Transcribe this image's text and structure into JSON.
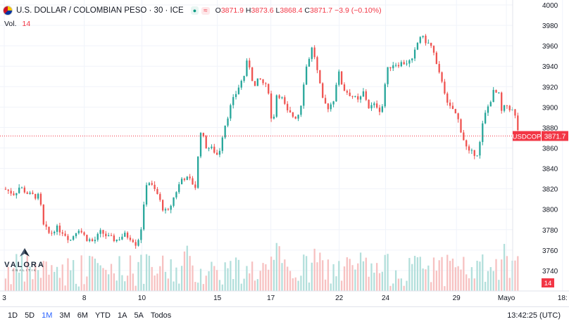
{
  "header": {
    "symbol_title": "U.S. DOLLAR / COLOMBIAN PESO · 30 · ICE",
    "open_label": "O",
    "open_value": "3871.9",
    "high_label": "H",
    "high_value": "3873.6",
    "low_label": "L",
    "low_value": "3868.4",
    "close_label": "C",
    "close_value": "3871.7",
    "change": "−3.9 (−0.10%)"
  },
  "volume_legend": {
    "label": "Vol.",
    "value": "14"
  },
  "watermark": {
    "name": "VALORA",
    "sub": "ANALITIK"
  },
  "toolbar": {
    "timeframes": [
      "1D",
      "5D",
      "1M",
      "3M",
      "6M",
      "YTD",
      "1A",
      "5A",
      "Todos"
    ],
    "active": "1M",
    "clock": "13:42:25 (UTC)"
  },
  "colors": {
    "up": "#26a69a",
    "down": "#ef5350",
    "price_line": "#f23645",
    "grid": "#f0f3fa"
  },
  "chart_data": {
    "type": "candlestick",
    "symbol": "USDCOP",
    "last_price": 3871.7,
    "last_volume": 14,
    "ylim": [
      3720,
      4000
    ],
    "y_ticks": [
      3740,
      3760,
      3780,
      3800,
      3820,
      3840,
      3860,
      3880,
      3900,
      3920,
      3940,
      3960,
      3980,
      4000
    ],
    "x_ticks": [
      {
        "label": "3",
        "pos": 0.0
      },
      {
        "label": "8",
        "pos": 0.157
      },
      {
        "label": "10",
        "pos": 0.27
      },
      {
        "label": "15",
        "pos": 0.418
      },
      {
        "label": "17",
        "pos": 0.523
      },
      {
        "label": "22",
        "pos": 0.657
      },
      {
        "label": "24",
        "pos": 0.748
      },
      {
        "label": "29",
        "pos": 0.887
      },
      {
        "label": "Mayo",
        "pos": 0.985
      },
      {
        "label": "18:",
        "pos": 1.095
      }
    ],
    "price_path": [
      [
        0.0,
        3820
      ],
      [
        0.02,
        3815
      ],
      [
        0.03,
        3822
      ],
      [
        0.05,
        3814
      ],
      [
        0.07,
        3812
      ],
      [
        0.075,
        3785
      ],
      [
        0.09,
        3775
      ],
      [
        0.1,
        3782
      ],
      [
        0.115,
        3778
      ],
      [
        0.13,
        3770
      ],
      [
        0.145,
        3782
      ],
      [
        0.16,
        3772
      ],
      [
        0.175,
        3768
      ],
      [
        0.19,
        3778
      ],
      [
        0.205,
        3772
      ],
      [
        0.22,
        3770
      ],
      [
        0.235,
        3775
      ],
      [
        0.25,
        3772
      ],
      [
        0.26,
        3765
      ],
      [
        0.27,
        3785
      ],
      [
        0.28,
        3830
      ],
      [
        0.29,
        3822
      ],
      [
        0.3,
        3815
      ],
      [
        0.31,
        3802
      ],
      [
        0.32,
        3795
      ],
      [
        0.335,
        3815
      ],
      [
        0.35,
        3832
      ],
      [
        0.365,
        3828
      ],
      [
        0.375,
        3822
      ],
      [
        0.385,
        3878
      ],
      [
        0.395,
        3862
      ],
      [
        0.41,
        3858
      ],
      [
        0.42,
        3852
      ],
      [
        0.43,
        3878
      ],
      [
        0.445,
        3902
      ],
      [
        0.46,
        3920
      ],
      [
        0.47,
        3930
      ],
      [
        0.475,
        3943
      ],
      [
        0.482,
        3940
      ],
      [
        0.49,
        3918
      ],
      [
        0.5,
        3928
      ],
      [
        0.51,
        3922
      ],
      [
        0.52,
        3915
      ],
      [
        0.525,
        3878
      ],
      [
        0.535,
        3915
      ],
      [
        0.545,
        3908
      ],
      [
        0.555,
        3895
      ],
      [
        0.57,
        3890
      ],
      [
        0.58,
        3895
      ],
      [
        0.59,
        3935
      ],
      [
        0.6,
        3952
      ],
      [
        0.605,
        3960
      ],
      [
        0.615,
        3932
      ],
      [
        0.625,
        3905
      ],
      [
        0.635,
        3900
      ],
      [
        0.645,
        3905
      ],
      [
        0.655,
        3935
      ],
      [
        0.665,
        3918
      ],
      [
        0.68,
        3912
      ],
      [
        0.695,
        3905
      ],
      [
        0.705,
        3915
      ],
      [
        0.715,
        3900
      ],
      [
        0.73,
        3902
      ],
      [
        0.74,
        3895
      ],
      [
        0.75,
        3935
      ],
      [
        0.76,
        3942
      ],
      [
        0.78,
        3943
      ],
      [
        0.8,
        3945
      ],
      [
        0.815,
        3970
      ],
      [
        0.83,
        3963
      ],
      [
        0.84,
        3958
      ],
      [
        0.85,
        3935
      ],
      [
        0.86,
        3925
      ],
      [
        0.87,
        3900
      ],
      [
        0.88,
        3898
      ],
      [
        0.89,
        3888
      ],
      [
        0.9,
        3870
      ],
      [
        0.91,
        3855
      ],
      [
        0.93,
        3855
      ],
      [
        0.94,
        3888
      ],
      [
        0.95,
        3902
      ],
      [
        0.96,
        3915
      ],
      [
        0.97,
        3912
      ],
      [
        0.975,
        3895
      ],
      [
        0.985,
        3902
      ],
      [
        1.0,
        3895
      ],
      [
        1.01,
        3872
      ]
    ]
  }
}
